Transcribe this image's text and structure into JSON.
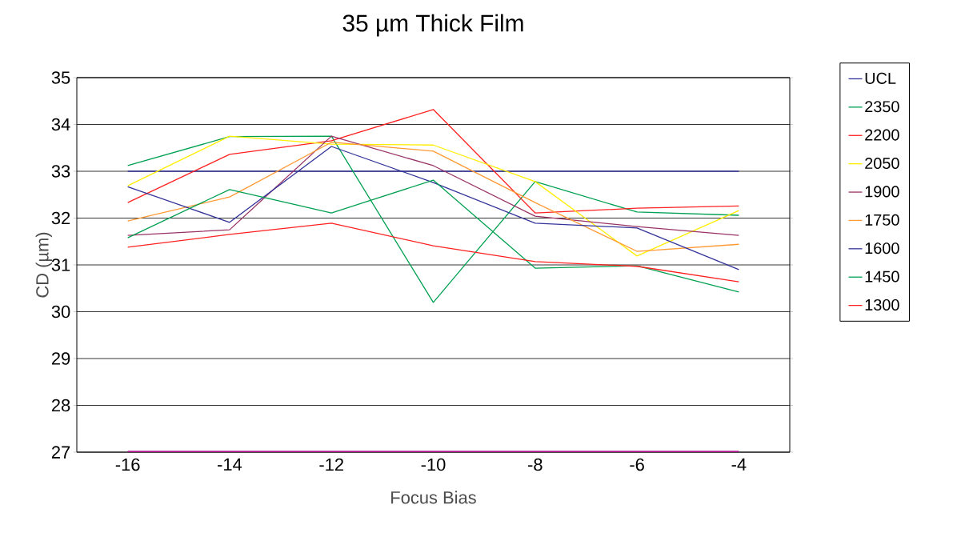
{
  "chart_data": {
    "type": "line",
    "title": "35 µm Thick Film",
    "xlabel": "Focus Bias",
    "ylabel": "CD (µm)",
    "categories": [
      "-16",
      "-14",
      "-12",
      "-10",
      "-8",
      "-6",
      "-4"
    ],
    "ylim": [
      27,
      35
    ],
    "yticks": [
      27,
      28,
      29,
      30,
      31,
      32,
      33,
      34,
      35
    ],
    "grid": "y",
    "legend": "right",
    "series": [
      {
        "name": "UCL",
        "color": "#333399",
        "values": [
          33,
          33,
          33,
          33,
          33,
          33,
          33
        ]
      },
      {
        "name": "2350",
        "color": "#00a050",
        "values": [
          33.12,
          33.74,
          33.75,
          30.2,
          32.78,
          32.13,
          32.06
        ]
      },
      {
        "name": "2200",
        "color": "#ff2020",
        "values": [
          32.33,
          33.36,
          33.65,
          34.32,
          32.11,
          32.21,
          32.26
        ]
      },
      {
        "name": "2050",
        "color": "#ffee00",
        "values": [
          32.69,
          33.75,
          33.58,
          33.56,
          32.78,
          31.19,
          32.16
        ]
      },
      {
        "name": "1900",
        "color": "#993366",
        "values": [
          31.63,
          31.75,
          33.75,
          33.12,
          32.04,
          31.82,
          31.63
        ]
      },
      {
        "name": "1750",
        "color": "#ff9933",
        "values": [
          31.94,
          32.45,
          33.62,
          33.43,
          32.33,
          31.29,
          31.44
        ]
      },
      {
        "name": "1600",
        "color": "#333399",
        "values": [
          32.67,
          31.91,
          33.53,
          32.76,
          31.89,
          31.79,
          30.9
        ]
      },
      {
        "name": "1450",
        "color": "#00a050",
        "values": [
          31.58,
          32.61,
          32.11,
          32.81,
          30.93,
          30.98,
          30.42
        ]
      },
      {
        "name": "1300",
        "color": "#ff2020",
        "values": [
          31.38,
          31.65,
          31.89,
          31.41,
          31.07,
          30.97,
          30.64
        ]
      },
      {
        "color": "#b0148c",
        "values": [
          27,
          27,
          27,
          27,
          27,
          27,
          27
        ]
      }
    ]
  }
}
